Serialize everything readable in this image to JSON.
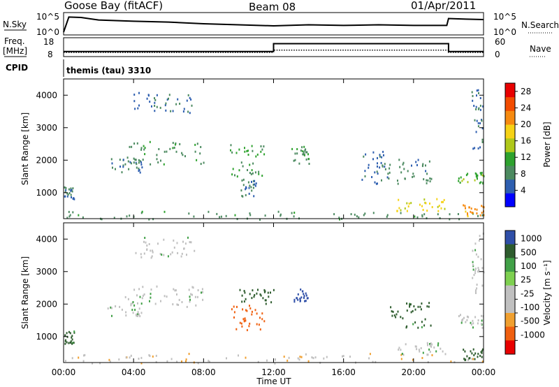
{
  "header": {
    "station": "Goose Bay (fitACF)",
    "beam": "Beam 08",
    "date": "01/Apr/2011"
  },
  "side_labels": {
    "nsky": "N.Sky",
    "freq_line1": "Freq.",
    "freq_line2": "[MHz]",
    "cpid": "CPID",
    "nsearch": "N.Search",
    "nave": "Nave"
  },
  "xaxis": {
    "label": "Time UT",
    "ticks": [
      "00:00",
      "04:00",
      "08:00",
      "12:00",
      "16:00",
      "20:00",
      "00:00"
    ],
    "range_hours": [
      0,
      24
    ]
  },
  "colors": {
    "power": [
      "#0000ff",
      "#2e5fb0",
      "#4c8a60",
      "#2ea22e",
      "#b0c81a",
      "#f6d216",
      "#f68a10",
      "#f24c00",
      "#e80000"
    ],
    "velocity": [
      "#2f4fa8",
      "#2e5c2e",
      "#41a047",
      "#7ed050",
      "#c0c0c0",
      "#c0c0c0",
      "#f0a030",
      "#f06010",
      "#e80000"
    ],
    "line": "#000000"
  },
  "chart_data": [
    {
      "type": "line",
      "panel": "noise",
      "left_ticks": [
        "10^5",
        "10^0"
      ],
      "right_ticks": [
        "10^5",
        "10^0"
      ],
      "series": [
        {
          "name": "N.Sky",
          "x": [
            0,
            0.3,
            1,
            2,
            4,
            6,
            8,
            10,
            12,
            14,
            16,
            18,
            20,
            21.9,
            22,
            23,
            24
          ],
          "y": [
            0.1,
            0.82,
            0.8,
            0.68,
            0.62,
            0.58,
            0.5,
            0.45,
            0.4,
            0.45,
            0.42,
            0.45,
            0.42,
            0.42,
            0.75,
            0.72,
            0.7
          ]
        }
      ]
    },
    {
      "type": "line",
      "panel": "frequency",
      "left_ticks": [
        "18",
        "8"
      ],
      "right_ticks": [
        "60",
        "0"
      ],
      "series": [
        {
          "name": "Freq.",
          "x": [
            0,
            12,
            12,
            22,
            22,
            24
          ],
          "y": [
            10.5,
            10.5,
            15,
            15,
            10.5,
            10.5
          ]
        },
        {
          "name": "Nave",
          "x": [
            0,
            12,
            12,
            22,
            22,
            24
          ],
          "y": [
            10,
            10,
            11.3,
            11.3,
            10,
            10
          ]
        }
      ]
    },
    {
      "type": "heatmap",
      "panel": "power",
      "xlabel": "Time UT",
      "ylabel": "Slant Range [km]",
      "yticks": [
        1000,
        2000,
        3000,
        4000
      ],
      "ylim": [
        200,
        4500
      ],
      "colorbar": {
        "label": "Power [dB]",
        "ticks": [
          4,
          8,
          12,
          16,
          20,
          24,
          28
        ],
        "range": [
          0,
          30
        ]
      },
      "cpid_text": "themis (tau) 3310",
      "regions": [
        {
          "t": [
            4.0,
            7.5
          ],
          "r": [
            3450,
            4100
          ],
          "v": 5
        },
        {
          "t": [
            3.5,
            8.0
          ],
          "r": [
            1900,
            2600
          ],
          "v": 8
        },
        {
          "t": [
            2.5,
            4.5
          ],
          "r": [
            1650,
            2100
          ],
          "v": 5
        },
        {
          "t": [
            9.5,
            11.5
          ],
          "r": [
            1500,
            2500
          ],
          "v": 10
        },
        {
          "t": [
            10.0,
            11.0
          ],
          "r": [
            900,
            1500
          ],
          "v": 6
        },
        {
          "t": [
            13.0,
            14.0
          ],
          "r": [
            1900,
            2450
          ],
          "v": 9
        },
        {
          "t": [
            0.0,
            0.6
          ],
          "r": [
            800,
            1200
          ],
          "v": 6
        },
        {
          "t": [
            0.0,
            24.0
          ],
          "r": [
            200,
            450
          ],
          "v": 8
        },
        {
          "t": [
            19.0,
            21.8
          ],
          "r": [
            450,
            850
          ],
          "v": 18
        },
        {
          "t": [
            22.5,
            24.0
          ],
          "r": [
            1300,
            1700
          ],
          "v": 12
        },
        {
          "t": [
            23.3,
            24.0
          ],
          "r": [
            2300,
            4200
          ],
          "v": 5
        },
        {
          "t": [
            17.0,
            18.5
          ],
          "r": [
            1300,
            2300
          ],
          "v": 5
        },
        {
          "t": [
            18.5,
            21.0
          ],
          "r": [
            1300,
            2100
          ],
          "v": 7
        },
        {
          "t": [
            22.8,
            24.0
          ],
          "r": [
            300,
            650
          ],
          "v": 22
        }
      ]
    },
    {
      "type": "heatmap",
      "panel": "velocity",
      "xlabel": "Time UT",
      "ylabel": "Slant Range [km]",
      "yticks": [
        1000,
        2000,
        3000,
        4000
      ],
      "ylim": [
        200,
        4500
      ],
      "colorbar": {
        "label": "Velocity [m s⁻¹]",
        "ticks": [
          "1000",
          "500",
          "100",
          "25",
          "-25",
          "-100",
          "-500",
          "-1000"
        ],
        "range": [
          -1000,
          1000
        ]
      },
      "regions": [
        {
          "t": [
            4.0,
            7.5
          ],
          "r": [
            3450,
            4100
          ],
          "v": 0
        },
        {
          "t": [
            3.5,
            8.0
          ],
          "r": [
            1900,
            2600
          ],
          "v": 0
        },
        {
          "t": [
            2.5,
            4.5
          ],
          "r": [
            1650,
            2100
          ],
          "v": 0
        },
        {
          "t": [
            9.5,
            11.5
          ],
          "r": [
            1200,
            2000
          ],
          "v": -600
        },
        {
          "t": [
            10.0,
            12.0
          ],
          "r": [
            2000,
            2500
          ],
          "v": 200
        },
        {
          "t": [
            13.0,
            14.0
          ],
          "r": [
            2100,
            2500
          ],
          "v": 700
        },
        {
          "t": [
            0.0,
            0.6
          ],
          "r": [
            800,
            1200
          ],
          "v": 150
        },
        {
          "t": [
            0.0,
            24.0
          ],
          "r": [
            200,
            500
          ],
          "v": -80
        },
        {
          "t": [
            19.0,
            21.8
          ],
          "r": [
            450,
            850
          ],
          "v": -10
        },
        {
          "t": [
            22.5,
            24.0
          ],
          "r": [
            1300,
            1700
          ],
          "v": 0
        },
        {
          "t": [
            23.3,
            24.0
          ],
          "r": [
            2300,
            4200
          ],
          "v": 0
        },
        {
          "t": [
            18.5,
            21.0
          ],
          "r": [
            1300,
            2100
          ],
          "v": 150
        },
        {
          "t": [
            22.8,
            24.0
          ],
          "r": [
            300,
            650
          ],
          "v": 300
        }
      ]
    }
  ]
}
